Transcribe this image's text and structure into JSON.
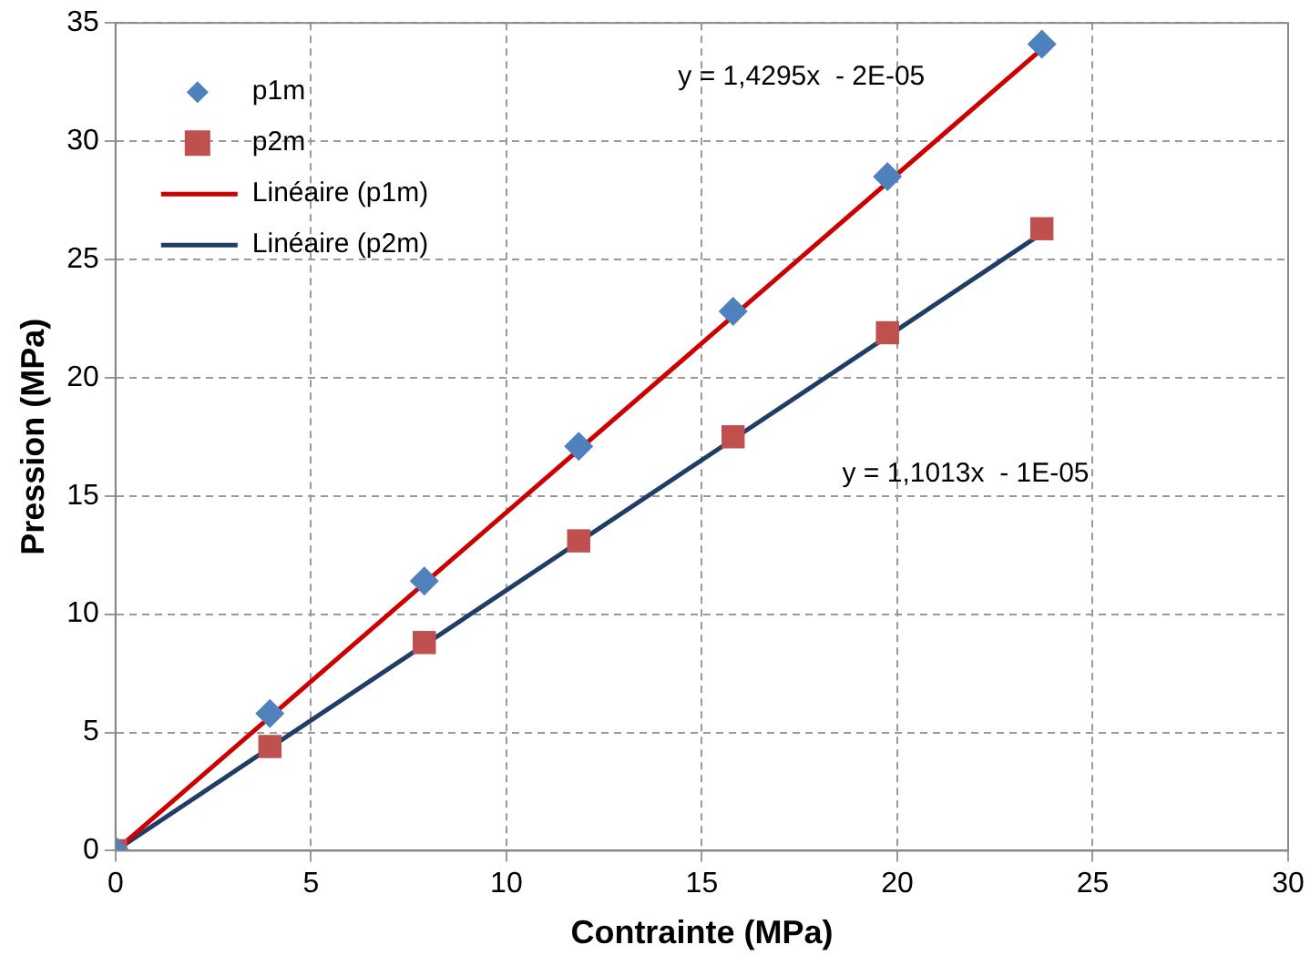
{
  "chart_data": {
    "type": "scatter",
    "xlabel": "Contrainte (MPa)",
    "ylabel": "Pression (MPa)",
    "xlim": [
      0,
      30
    ],
    "xticks": [
      0,
      5,
      10,
      15,
      20,
      25,
      30
    ],
    "ylim": [
      0,
      35
    ],
    "yticks": [
      0,
      5,
      10,
      15,
      20,
      25,
      30,
      35
    ],
    "grid": true,
    "legend": "top left",
    "series": [
      {
        "name": "p1m",
        "type": "scatter",
        "marker": "diamond",
        "color": "#4f81bd",
        "x": [
          0,
          3.95,
          7.9,
          11.85,
          15.8,
          19.75,
          23.7
        ],
        "values": [
          0,
          5.8,
          11.4,
          17.1,
          22.8,
          28.5,
          34.1
        ]
      },
      {
        "name": "p2m",
        "type": "scatter",
        "marker": "square",
        "color": "#c0504d",
        "x": [
          0,
          3.95,
          7.9,
          11.85,
          15.8,
          19.75,
          23.7
        ],
        "values": [
          0,
          4.4,
          8.8,
          13.1,
          17.5,
          21.9,
          26.3
        ]
      },
      {
        "name": "Linéaire (p1m)",
        "type": "line",
        "marker": "none",
        "color": "#cc0000",
        "x": [
          0,
          23.7
        ],
        "values": [
          0,
          33.9
        ]
      },
      {
        "name": "Linéaire (p2m)",
        "type": "line",
        "marker": "none",
        "color": "#1f3d66",
        "x": [
          0,
          23.7
        ],
        "values": [
          0,
          26.1
        ]
      }
    ],
    "annotations": [
      "y = 1,4295x  - 2E-05",
      "y = 1,1013x  - 1E-05"
    ]
  }
}
